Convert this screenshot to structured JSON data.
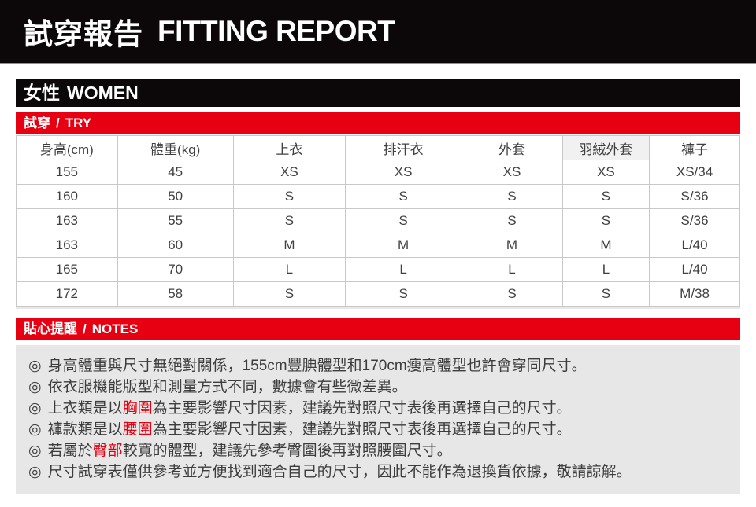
{
  "masthead": {
    "title_zh": "試穿報告",
    "title_en": "FITTING REPORT"
  },
  "section_header": {
    "gender_zh": "女性",
    "gender_en": "WOMEN"
  },
  "try_bar": {
    "label_zh": "試穿",
    "separator": "/",
    "label_en": "TRY"
  },
  "notes_bar": {
    "label_zh": "貼心提醒",
    "separator": "/",
    "label_en": "NOTES"
  },
  "table": {
    "headers": [
      "身高(cm)",
      "體重(kg)",
      "上衣",
      "排汗衣",
      "外套",
      "羽絨外套",
      "褲子"
    ],
    "highlighted_header_index": 5,
    "rows": [
      [
        "155",
        "45",
        "XS",
        "XS",
        "XS",
        "XS",
        "XS/34"
      ],
      [
        "160",
        "50",
        "S",
        "S",
        "S",
        "S",
        "S/36"
      ],
      [
        "163",
        "55",
        "S",
        "S",
        "S",
        "S",
        "S/36"
      ],
      [
        "163",
        "60",
        "M",
        "M",
        "M",
        "M",
        "L/40"
      ],
      [
        "165",
        "70",
        "L",
        "L",
        "L",
        "L",
        "L/40"
      ],
      [
        "172",
        "58",
        "S",
        "S",
        "S",
        "S",
        "M/38"
      ]
    ]
  },
  "notes": {
    "bullet": "◎",
    "items": [
      {
        "segments": [
          {
            "text": "身高體重與尺寸無絕對關係，155cm豐腆體型和170cm瘦高體型也許會穿同尺寸。",
            "red": false
          }
        ]
      },
      {
        "segments": [
          {
            "text": "依衣服機能版型和測量方式不同，數據會有些微差異。",
            "red": false
          }
        ]
      },
      {
        "segments": [
          {
            "text": "上衣類是以",
            "red": false
          },
          {
            "text": "胸圍",
            "red": true
          },
          {
            "text": "為主要影響尺寸因素，建議先對照尺寸表後再選擇自己的尺寸。",
            "red": false
          }
        ]
      },
      {
        "segments": [
          {
            "text": "褲款類是以",
            "red": false
          },
          {
            "text": "腰圍",
            "red": true
          },
          {
            "text": "為主要影響尺寸因素，建議先對照尺寸表後再選擇自己的尺寸。",
            "red": false
          }
        ]
      },
      {
        "segments": [
          {
            "text": "若屬於",
            "red": false
          },
          {
            "text": "臀部",
            "red": true
          },
          {
            "text": "較寬的體型，建議先參考臀圍後再對照腰圍尺寸。",
            "red": false
          }
        ]
      },
      {
        "segments": [
          {
            "text": "尺寸試穿表僅供參考並方便找到適合自己的尺寸，因此不能作為退換貨依據，敬請諒解。",
            "red": false
          }
        ]
      }
    ]
  },
  "colors": {
    "brand_red": "#e60012",
    "header_black": "#0c0809",
    "panel_gray": "#e7e7e7",
    "grid_gray": "#c9c9c9",
    "text_dark": "#3d3d3d"
  }
}
